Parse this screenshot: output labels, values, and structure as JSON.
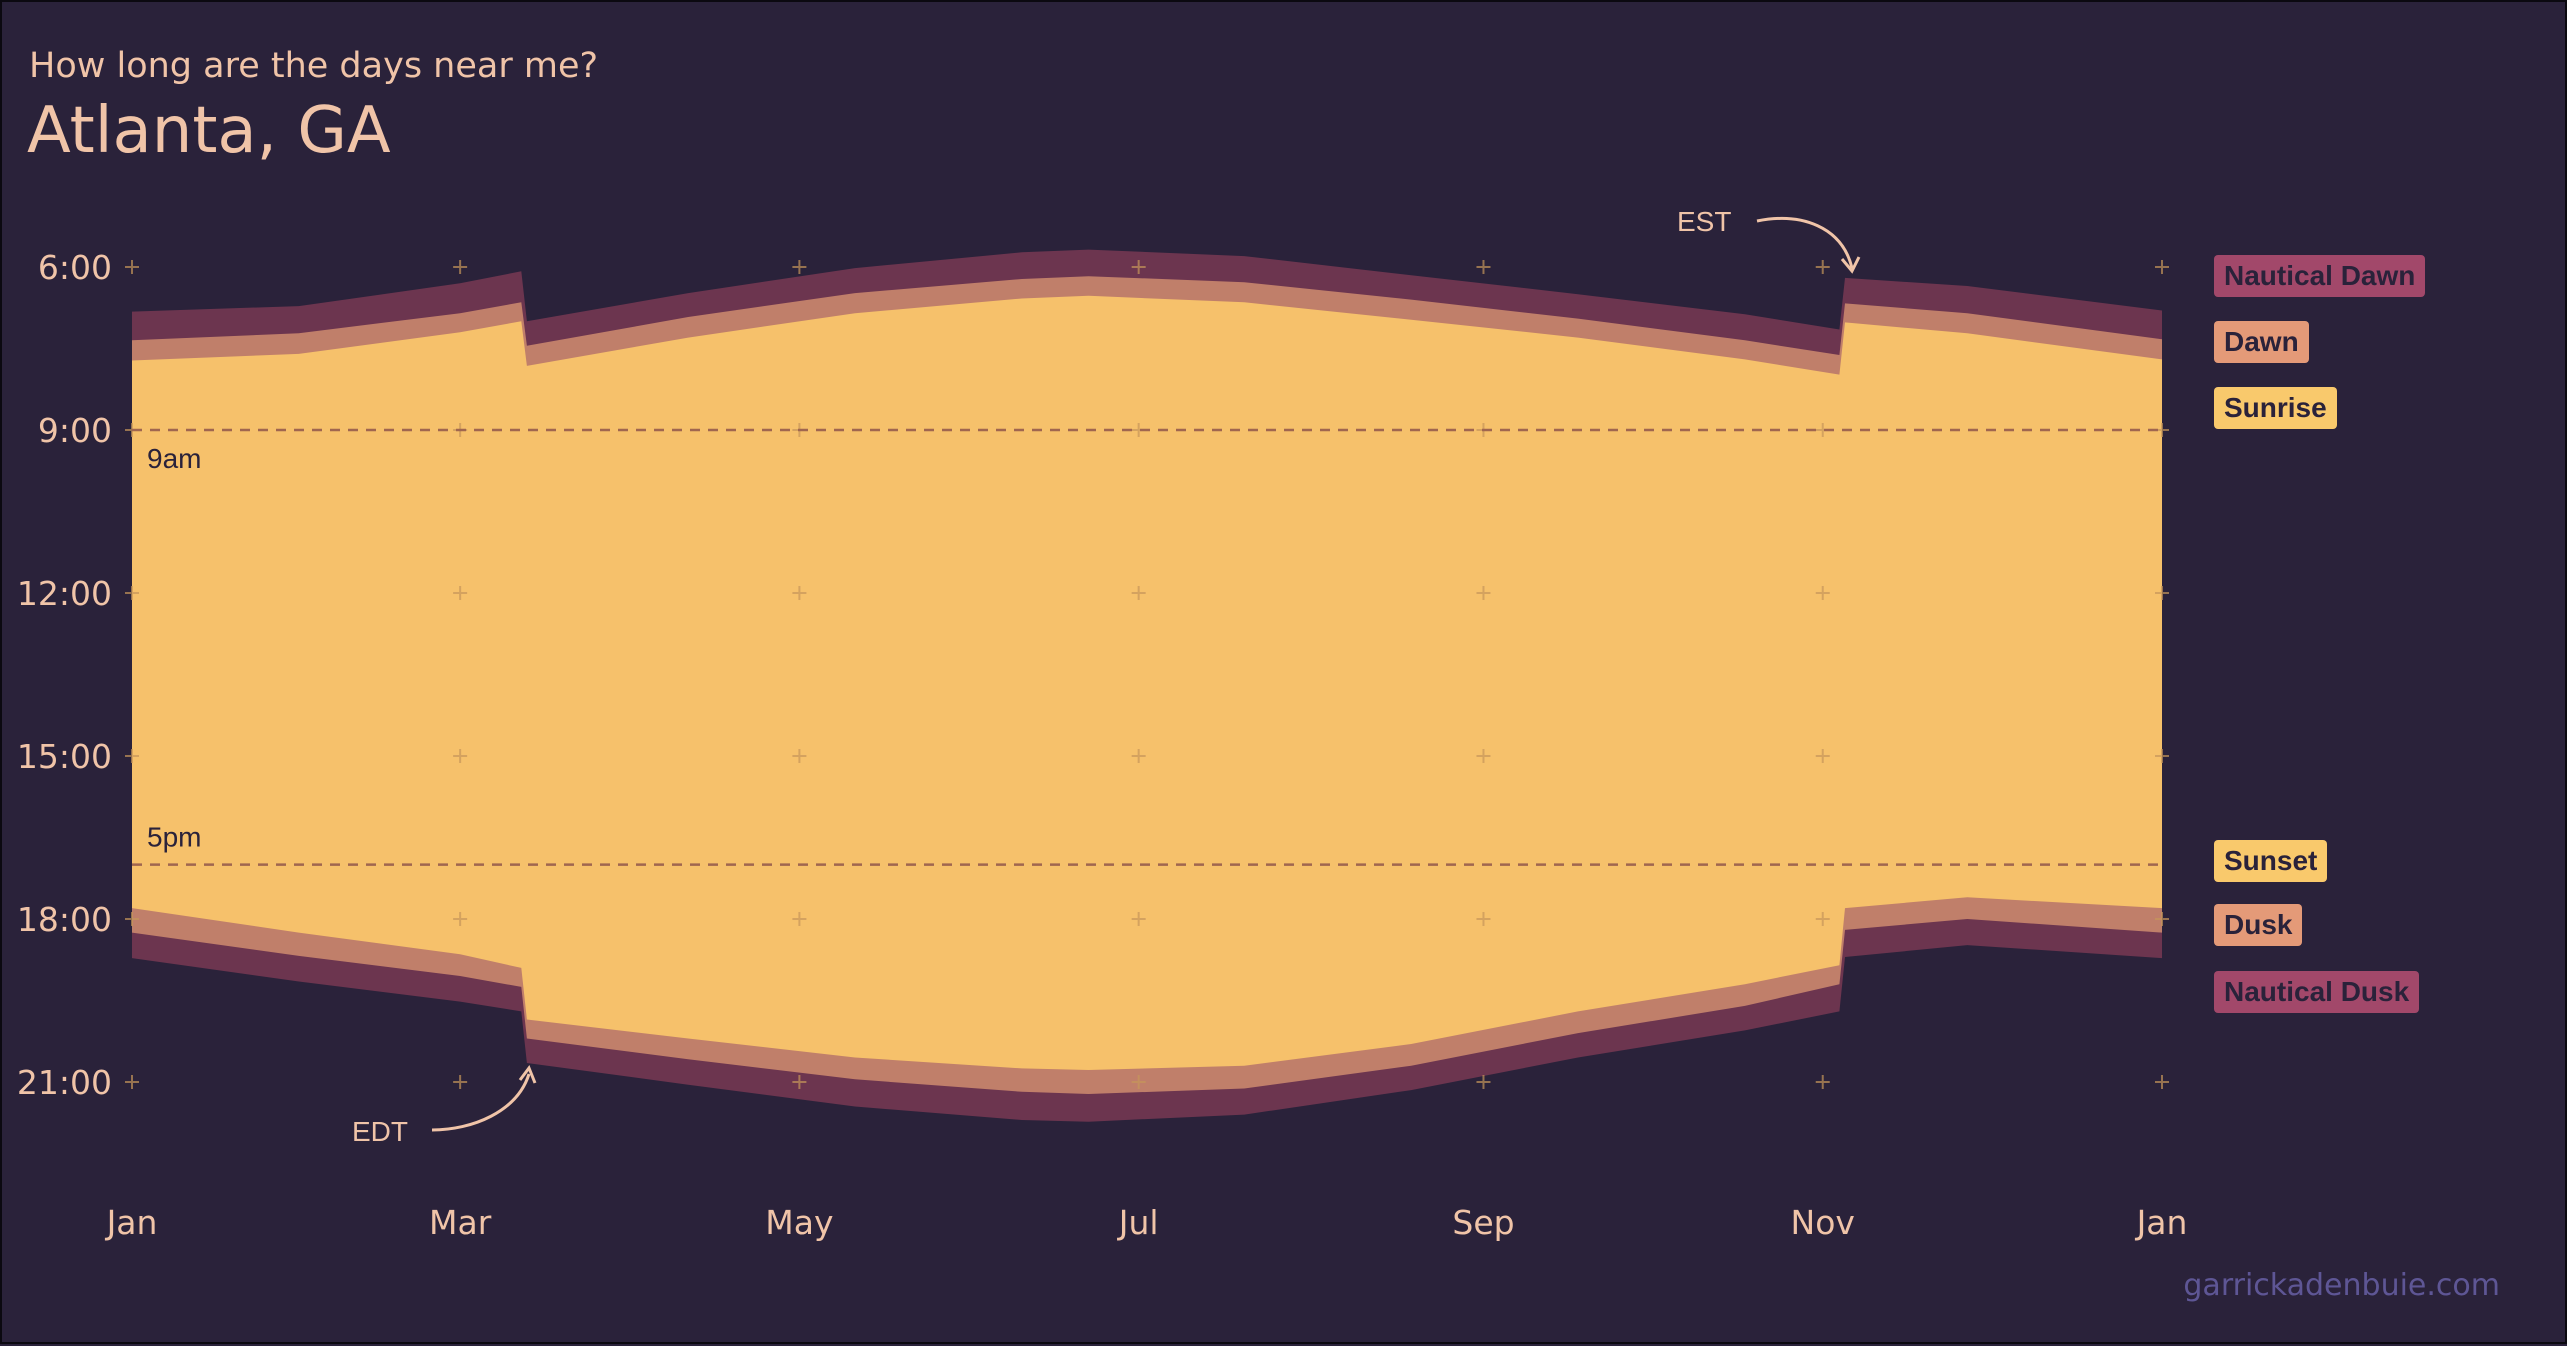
{
  "header": {
    "subtitle": "How long are the days near me?",
    "title": "Atlanta, GA"
  },
  "credit": "garrickadenbuie.com",
  "colors": {
    "background": "#2a223a",
    "nautical": "#6c354f",
    "civil": "#c07f6a",
    "day": "#f6c16b",
    "text": "#f0c4a8",
    "grid": "#b08060",
    "legend_nautical": "#a2486a",
    "legend_civil": "#e49a78",
    "legend_day": "#f9c96c"
  },
  "chart_data": {
    "type": "area",
    "title": "Atlanta, GA",
    "subtitle": "How long are the days near me?",
    "x_ticks": [
      "Jan",
      "Mar",
      "May",
      "Jul",
      "Sep",
      "Nov",
      "Jan"
    ],
    "x_tick_days": [
      0,
      59,
      120,
      181,
      243,
      304,
      365
    ],
    "y_ticks": [
      "6:00",
      "9:00",
      "12:00",
      "15:00",
      "18:00",
      "21:00"
    ],
    "y_tick_hours": [
      6,
      9,
      12,
      15,
      18,
      21
    ],
    "ylim": [
      5.55,
      21.1
    ],
    "reference_lines": [
      {
        "label": "9am",
        "hour": 9
      },
      {
        "label": "5pm",
        "hour": 17
      }
    ],
    "annotations": [
      {
        "label": "EDT",
        "day": 70,
        "hour": 20.8
      },
      {
        "label": "EST",
        "day": 308,
        "hour": 6.1
      }
    ],
    "grid_marks": true,
    "series": [
      {
        "name": "Nautical Dawn",
        "x": [
          0,
          30,
          59,
          70,
          71,
          100,
          130,
          160,
          172,
          200,
          230,
          260,
          290,
          307,
          308,
          330,
          365
        ],
        "values": [
          6.82,
          6.72,
          6.3,
          6.08,
          7.0,
          6.48,
          6.02,
          5.73,
          5.68,
          5.8,
          6.15,
          6.5,
          6.87,
          7.15,
          6.2,
          6.35,
          6.8
        ]
      },
      {
        "name": "Dawn",
        "x": [
          0,
          30,
          59,
          70,
          71,
          100,
          130,
          160,
          172,
          200,
          230,
          260,
          290,
          307,
          308,
          330,
          365
        ],
        "values": [
          7.35,
          7.22,
          6.85,
          6.65,
          7.45,
          6.92,
          6.48,
          6.22,
          6.17,
          6.28,
          6.6,
          6.95,
          7.35,
          7.62,
          6.67,
          6.85,
          7.33
        ]
      },
      {
        "name": "Sunrise",
        "x": [
          0,
          30,
          59,
          70,
          71,
          100,
          130,
          160,
          172,
          200,
          230,
          260,
          290,
          307,
          308,
          330,
          365
        ],
        "values": [
          7.72,
          7.6,
          7.2,
          7.0,
          7.82,
          7.3,
          6.85,
          6.58,
          6.53,
          6.65,
          6.97,
          7.3,
          7.7,
          7.98,
          7.02,
          7.22,
          7.7
        ]
      },
      {
        "name": "Sunset",
        "x": [
          0,
          30,
          59,
          70,
          71,
          100,
          130,
          160,
          172,
          200,
          230,
          260,
          290,
          307,
          308,
          330,
          365
        ],
        "values": [
          17.8,
          18.25,
          18.65,
          18.9,
          19.85,
          20.2,
          20.55,
          20.75,
          20.78,
          20.7,
          20.3,
          19.7,
          19.2,
          18.85,
          17.8,
          17.6,
          17.8
        ]
      },
      {
        "name": "Dusk",
        "x": [
          0,
          30,
          59,
          70,
          71,
          100,
          130,
          160,
          172,
          200,
          230,
          260,
          290,
          307,
          308,
          330,
          365
        ],
        "values": [
          18.25,
          18.68,
          19.05,
          19.25,
          20.2,
          20.58,
          20.95,
          21.18,
          21.22,
          21.12,
          20.7,
          20.1,
          19.6,
          19.2,
          18.2,
          18.0,
          18.25
        ]
      },
      {
        "name": "Nautical Dusk",
        "x": [
          0,
          30,
          59,
          70,
          71,
          100,
          130,
          160,
          172,
          200,
          230,
          260,
          290,
          307,
          308,
          330,
          365
        ],
        "values": [
          18.72,
          19.15,
          19.52,
          19.7,
          20.65,
          21.05,
          21.45,
          21.7,
          21.73,
          21.6,
          21.15,
          20.55,
          20.05,
          19.7,
          18.7,
          18.48,
          18.72
        ]
      }
    ],
    "legend": [
      "Nautical Dawn",
      "Dawn",
      "Sunrise",
      "Sunset",
      "Dusk",
      "Nautical Dusk"
    ],
    "legend_placement": "right"
  }
}
